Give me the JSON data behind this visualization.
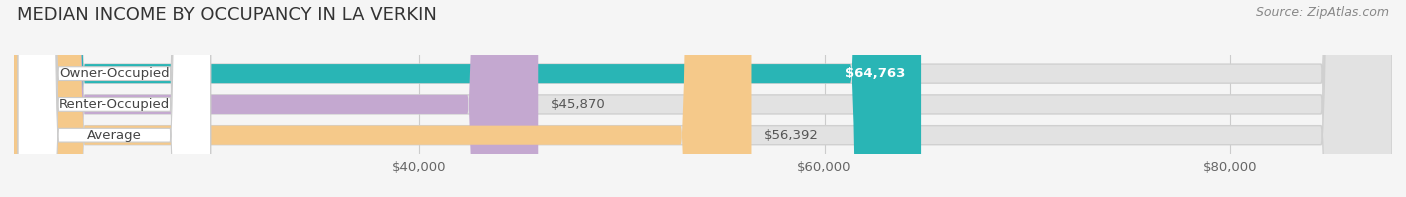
{
  "title": "MEDIAN INCOME BY OCCUPANCY IN LA VERKIN",
  "source": "Source: ZipAtlas.com",
  "categories": [
    "Owner-Occupied",
    "Renter-Occupied",
    "Average"
  ],
  "values": [
    64763,
    45870,
    56392
  ],
  "bar_colors": [
    "#29b5b5",
    "#c4a8d0",
    "#f5c98a"
  ],
  "labels": [
    "$64,763",
    "$45,870",
    "$56,392"
  ],
  "label_color_inside": [
    "#ffffff",
    "#555555",
    "#555555"
  ],
  "xmin": 20000,
  "xmax": 88000,
  "xticks": [
    40000,
    60000,
    80000
  ],
  "xtick_labels": [
    "$40,000",
    "$60,000",
    "$80,000"
  ],
  "title_fontsize": 13,
  "source_fontsize": 9,
  "label_fontsize": 9.5,
  "category_fontsize": 9.5,
  "bar_height": 0.62,
  "background_color": "#f5f5f5",
  "pill_bg": "#ffffff",
  "pill_border": "#dddddd",
  "bar_bg_color": "#e2e2e2"
}
